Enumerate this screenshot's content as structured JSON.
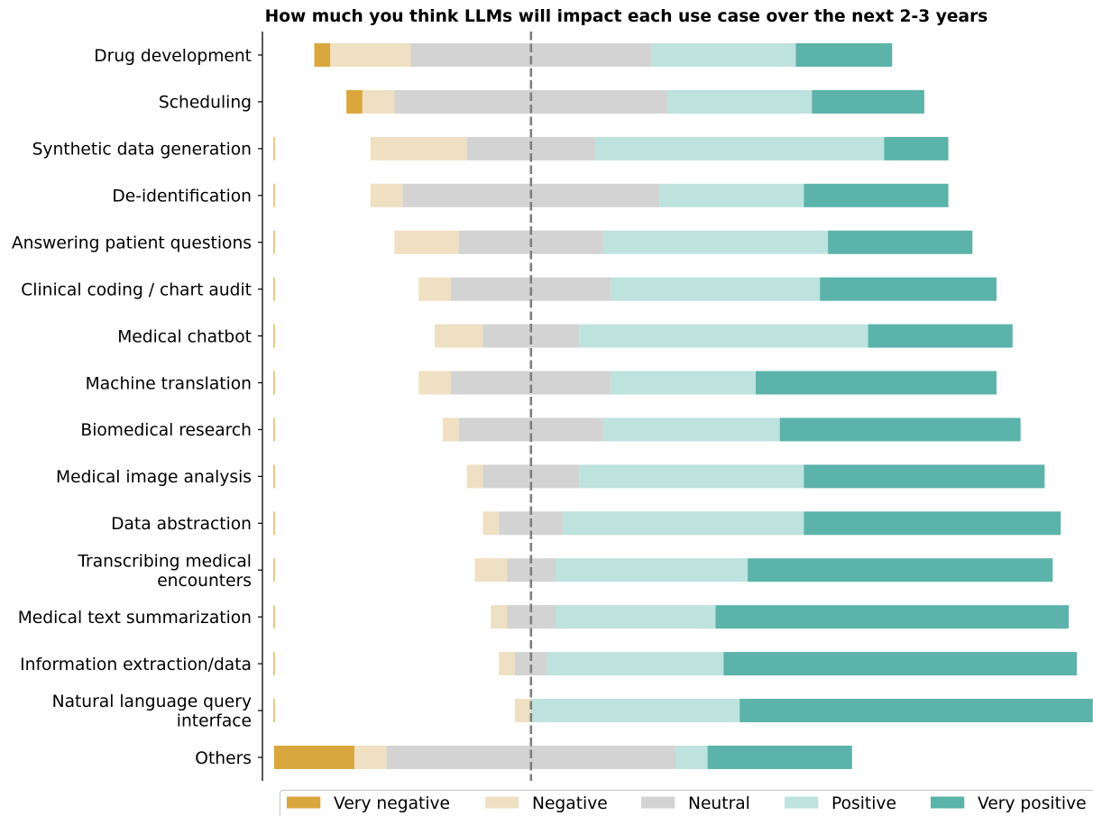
{
  "chart_data": {
    "type": "bar",
    "orientation": "horizontal",
    "stacked": "diverging",
    "title": "How much you think LLMs will impact each use case over the next 2-3 years",
    "categories": [
      "Drug development",
      "Scheduling",
      "Synthetic data generation",
      "De-identification",
      "Answering patient questions",
      "Clinical coding / chart audit",
      "Medical chatbot",
      "Machine translation",
      "Biomedical research",
      "Medical image analysis",
      "Data abstraction",
      "Transcribing medical\nencounters",
      "Medical text summarization",
      "Information extraction/data",
      "Natural language query\ninterface",
      "Others"
    ],
    "series": [
      {
        "name": "Very negative",
        "color": "#d9a73d",
        "values": [
          1,
          1,
          0,
          0,
          0,
          0,
          0,
          0,
          0,
          0,
          0,
          0,
          0,
          0,
          0,
          5
        ]
      },
      {
        "name": "Negative",
        "color": "#f0e0c3",
        "values": [
          5,
          2,
          6,
          2,
          4,
          2,
          3,
          2,
          1,
          1,
          1,
          2,
          1,
          1,
          1,
          2
        ]
      },
      {
        "name": "Neutral",
        "color": "#d3d3d3",
        "values": [
          15,
          17,
          8,
          16,
          9,
          10,
          6,
          10,
          9,
          6,
          4,
          3,
          3,
          2,
          0,
          18
        ]
      },
      {
        "name": "Positive",
        "color": "#bee2de",
        "values": [
          9,
          9,
          18,
          9,
          14,
          13,
          18,
          9,
          11,
          14,
          15,
          12,
          10,
          11,
          13,
          2
        ]
      },
      {
        "name": "Very positive",
        "color": "#5bb3aa",
        "values": [
          6,
          7,
          4,
          9,
          9,
          11,
          9,
          15,
          15,
          15,
          16,
          19,
          22,
          22,
          22,
          9
        ]
      }
    ],
    "legend_position": "bottom",
    "grid": false
  }
}
